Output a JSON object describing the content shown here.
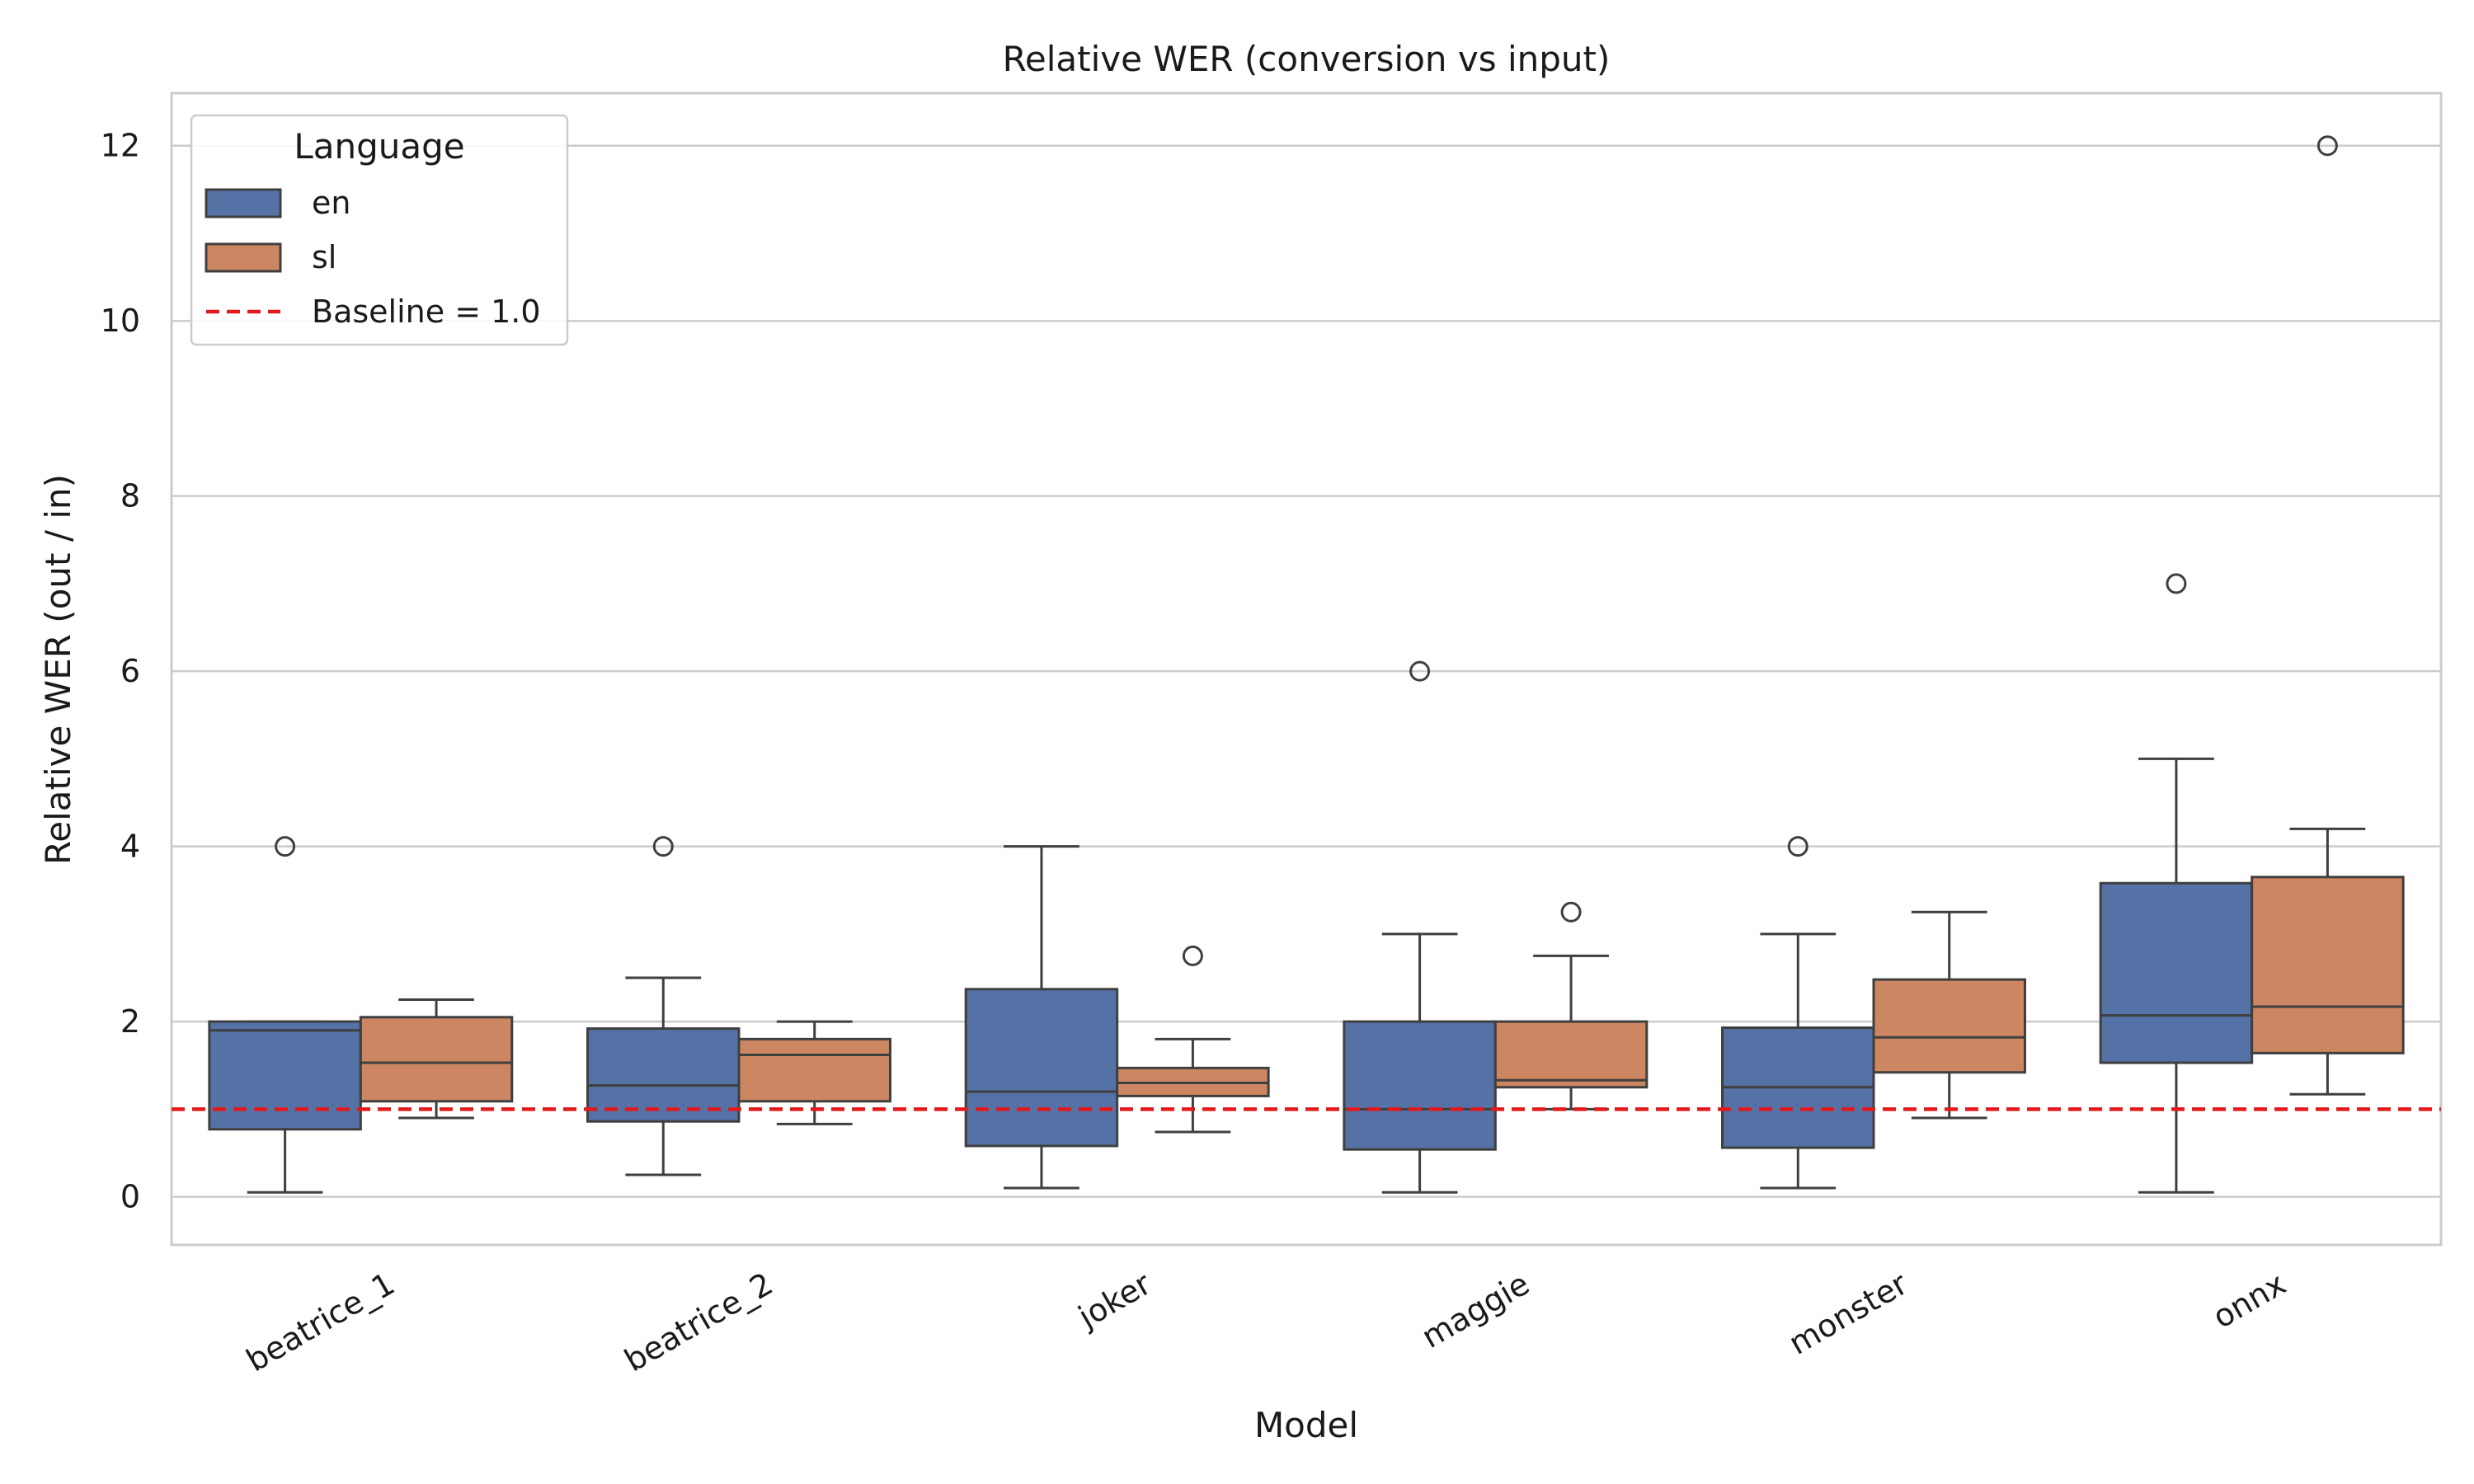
{
  "chart_data": {
    "type": "box",
    "title": "Relative WER (conversion vs input)",
    "xlabel": "Model",
    "ylabel": "Relative WER (out / in)",
    "ylim": [
      -0.55,
      12.6
    ],
    "yticks": [
      0,
      2,
      4,
      6,
      8,
      10,
      12
    ],
    "grid": true,
    "categories": [
      "beatrice_1",
      "beatrice_2",
      "joker",
      "maggie",
      "monster",
      "onnx"
    ],
    "legend": {
      "title": "Language",
      "placement": "top-left",
      "entries": [
        {
          "label": "en",
          "kind": "patch",
          "color": "#5572a6"
        },
        {
          "label": "sl",
          "kind": "patch",
          "color": "#cc8762"
        },
        {
          "label": "Baseline = 1.0",
          "kind": "dashed-line",
          "color": "#e31a1c"
        }
      ]
    },
    "baseline": {
      "value": 1.0,
      "label": "Baseline = 1.0",
      "color": "#e31a1c"
    },
    "series": [
      {
        "name": "en",
        "color": "#5572a6",
        "boxes": [
          {
            "category": "beatrice_1",
            "whislo": 0.05,
            "q1": 0.77,
            "median": 1.9,
            "q3": 2.0,
            "whishi": 2.0,
            "fliers": [
              4.0
            ]
          },
          {
            "category": "beatrice_2",
            "whislo": 0.25,
            "q1": 0.86,
            "median": 1.27,
            "q3": 1.92,
            "whishi": 2.5,
            "fliers": [
              4.0
            ]
          },
          {
            "category": "joker",
            "whislo": 0.1,
            "q1": 0.58,
            "median": 1.2,
            "q3": 2.37,
            "whishi": 4.0,
            "fliers": []
          },
          {
            "category": "maggie",
            "whislo": 0.05,
            "q1": 0.54,
            "median": 1.0,
            "q3": 2.0,
            "whishi": 3.0,
            "fliers": [
              6.0
            ]
          },
          {
            "category": "monster",
            "whislo": 0.1,
            "q1": 0.56,
            "median": 1.25,
            "q3": 1.93,
            "whishi": 3.0,
            "fliers": [
              4.0
            ]
          },
          {
            "category": "onnx",
            "whislo": 0.05,
            "q1": 1.53,
            "median": 2.07,
            "q3": 3.58,
            "whishi": 5.0,
            "fliers": [
              7.0
            ]
          }
        ]
      },
      {
        "name": "sl",
        "color": "#cc8762",
        "boxes": [
          {
            "category": "beatrice_1",
            "whislo": 0.9,
            "q1": 1.09,
            "median": 1.53,
            "q3": 2.05,
            "whishi": 2.25,
            "fliers": []
          },
          {
            "category": "beatrice_2",
            "whislo": 0.83,
            "q1": 1.09,
            "median": 1.62,
            "q3": 1.8,
            "whishi": 2.0,
            "fliers": []
          },
          {
            "category": "joker",
            "whislo": 0.74,
            "q1": 1.15,
            "median": 1.3,
            "q3": 1.47,
            "whishi": 1.8,
            "fliers": [
              2.75
            ]
          },
          {
            "category": "maggie",
            "whislo": 1.0,
            "q1": 1.25,
            "median": 1.33,
            "q3": 2.0,
            "whishi": 2.75,
            "fliers": [
              3.25
            ]
          },
          {
            "category": "monster",
            "whislo": 0.9,
            "q1": 1.42,
            "median": 1.82,
            "q3": 2.48,
            "whishi": 3.25,
            "fliers": []
          },
          {
            "category": "onnx",
            "whislo": 1.17,
            "q1": 1.64,
            "median": 2.17,
            "q3": 3.65,
            "whishi": 4.2,
            "fliers": [
              12.0
            ]
          }
        ]
      }
    ]
  }
}
